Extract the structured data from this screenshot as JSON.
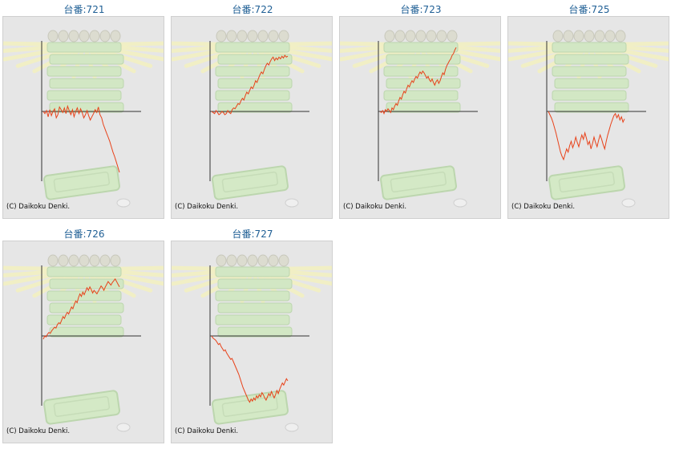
{
  "copyright": "(C) Daikoku Denki.",
  "colors": {
    "line": "#e8421a",
    "axis": "#333333",
    "title": "#1f5f95",
    "panel_bg": "#e6e6e6"
  },
  "chart_data": [
    {
      "type": "line",
      "title": "台番:721",
      "series": [
        {
          "values": [
            0,
            -2,
            1,
            -5,
            2,
            -4,
            0,
            3,
            -6,
            -3,
            5,
            2,
            -1,
            4,
            -2,
            6,
            1,
            -3,
            2,
            -5,
            0,
            4,
            -2,
            3,
            -1,
            -6,
            -3,
            1,
            -4,
            -8,
            -5,
            -2,
            2,
            -1,
            5,
            -3,
            -6,
            -12,
            -16,
            -20,
            -24,
            -28,
            -33,
            -38,
            -42,
            -47,
            -52,
            -57
          ]
        }
      ]
    },
    {
      "type": "line",
      "title": "台番:722",
      "series": [
        {
          "values": [
            0,
            -1,
            -2,
            1,
            -1,
            -3,
            -2,
            0,
            -1,
            -3,
            -2,
            1,
            -1,
            -2,
            2,
            4,
            3,
            6,
            9,
            8,
            12,
            15,
            13,
            18,
            22,
            20,
            24,
            28,
            26,
            30,
            35,
            33,
            38,
            42,
            45,
            43,
            48,
            52,
            55,
            53,
            57,
            60,
            62,
            58,
            61,
            59,
            62,
            60,
            63,
            61,
            64,
            62,
            63
          ]
        }
      ]
    },
    {
      "type": "line",
      "title": "台番:723",
      "series": [
        {
          "values": [
            0,
            -1,
            1,
            -2,
            2,
            0,
            3,
            1,
            -1,
            4,
            2,
            6,
            9,
            7,
            12,
            16,
            14,
            19,
            23,
            21,
            26,
            30,
            28,
            32,
            35,
            33,
            37,
            40,
            38,
            42,
            45,
            43,
            46,
            44,
            41,
            38,
            40,
            36,
            34,
            37,
            33,
            30,
            34,
            36,
            32,
            35,
            40,
            44,
            42,
            48,
            52,
            55,
            58,
            60,
            64,
            66,
            70,
            73
          ]
        }
      ]
    },
    {
      "type": "line",
      "title": "台番:725",
      "series": [
        {
          "values": [
            0,
            -3,
            -6,
            -10,
            -15,
            -20,
            -26,
            -32,
            -38,
            -42,
            -45,
            -40,
            -35,
            -38,
            -32,
            -28,
            -34,
            -30,
            -24,
            -29,
            -33,
            -27,
            -22,
            -26,
            -20,
            -25,
            -31,
            -28,
            -35,
            -30,
            -24,
            -29,
            -33,
            -27,
            -22,
            -26,
            -31,
            -35,
            -28,
            -22,
            -17,
            -12,
            -8,
            -4,
            -2,
            -6,
            -3,
            -8,
            -5,
            -10,
            -7
          ]
        }
      ]
    },
    {
      "type": "line",
      "title": "台番:726",
      "series": [
        {
          "values": [
            -3,
            0,
            -1,
            2,
            4,
            3,
            6,
            8,
            10,
            9,
            13,
            15,
            14,
            18,
            22,
            20,
            24,
            27,
            25,
            29,
            33,
            31,
            36,
            40,
            38,
            44,
            48,
            45,
            50,
            47,
            51,
            55,
            52,
            56,
            53,
            49,
            52,
            50,
            48,
            51,
            54,
            57,
            55,
            52,
            56,
            59,
            62,
            60,
            58,
            61,
            63,
            65,
            62,
            59,
            56
          ]
        }
      ]
    },
    {
      "type": "line",
      "title": "台番:727",
      "series": [
        {
          "values": [
            0,
            -2,
            -3,
            -4,
            -6,
            -8,
            -7,
            -10,
            -12,
            -14,
            -13,
            -16,
            -18,
            -20,
            -22,
            -21,
            -24,
            -27,
            -30,
            -33,
            -36,
            -40,
            -44,
            -48,
            -51,
            -54,
            -57,
            -60,
            -62,
            -59,
            -61,
            -58,
            -60,
            -56,
            -58,
            -55,
            -57,
            -53,
            -55,
            -58,
            -60,
            -57,
            -54,
            -56,
            -52,
            -55,
            -58,
            -55,
            -51,
            -54,
            -50,
            -47,
            -44,
            -46,
            -43,
            -40,
            -42
          ]
        }
      ]
    }
  ]
}
